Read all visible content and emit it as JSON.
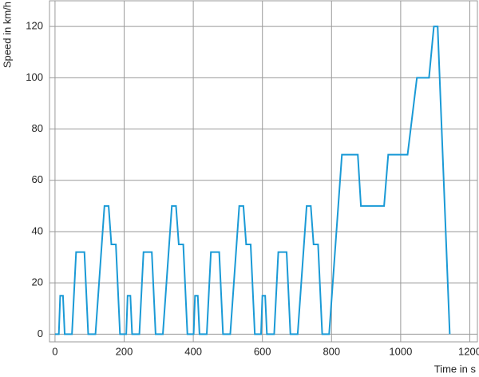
{
  "chart_data": {
    "type": "line",
    "x_label": "Time in s",
    "y_label": "Speed in km/h",
    "x": [
      0,
      11,
      15,
      23,
      28,
      49,
      61,
      85,
      96,
      117,
      143,
      155,
      163,
      176,
      188,
      195,
      206,
      210,
      218,
      223,
      244,
      256,
      280,
      291,
      312,
      338,
      350,
      358,
      371,
      383,
      390,
      401,
      405,
      413,
      418,
      439,
      451,
      475,
      486,
      507,
      533,
      545,
      553,
      566,
      578,
      585,
      596,
      600,
      608,
      613,
      634,
      646,
      670,
      681,
      702,
      728,
      740,
      748,
      761,
      773,
      793,
      830,
      876,
      885,
      952,
      964,
      1020,
      1047,
      1082,
      1096,
      1107,
      1142
    ],
    "series": [
      {
        "color": "#1a9ad6",
        "values": [
          0,
          0,
          15,
          15,
          0,
          0,
          32,
          32,
          0,
          0,
          50,
          50,
          35,
          35,
          0,
          0,
          0,
          15,
          15,
          0,
          0,
          32,
          32,
          0,
          0,
          50,
          50,
          35,
          35,
          0,
          0,
          0,
          15,
          15,
          0,
          0,
          32,
          32,
          0,
          0,
          50,
          50,
          35,
          35,
          0,
          0,
          0,
          15,
          15,
          0,
          0,
          32,
          32,
          0,
          0,
          50,
          50,
          35,
          35,
          0,
          0,
          70,
          70,
          50,
          50,
          70,
          70,
          100,
          100,
          120,
          120,
          0
        ]
      }
    ],
    "xlim": [
      -16,
      1222
    ],
    "ylim": [
      -3,
      130
    ],
    "xticks": [
      0,
      200,
      400,
      600,
      800,
      1000,
      1200
    ],
    "yticks": [
      0,
      20,
      40,
      60,
      80,
      100,
      120
    ],
    "grid": true
  }
}
